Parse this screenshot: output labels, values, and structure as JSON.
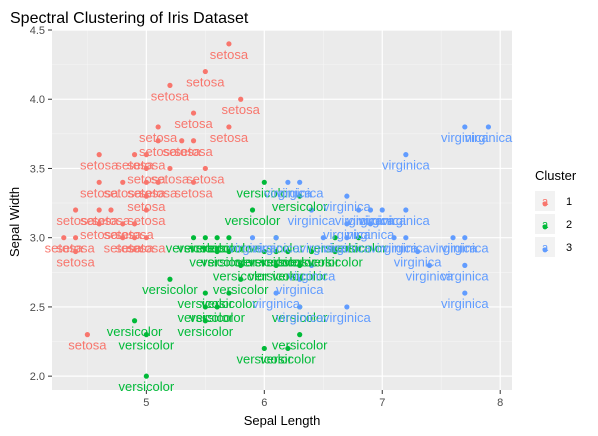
{
  "chart_data": {
    "type": "scatter",
    "title": "Spectral Clustering of Iris Dataset",
    "xlabel": "Sepal Length",
    "ylabel": "Sepal Width",
    "xlim": [
      4.2,
      8.1
    ],
    "ylim": [
      1.9,
      4.5
    ],
    "xticks": [
      5,
      6,
      7,
      8
    ],
    "yticks": [
      2.0,
      2.5,
      3.0,
      3.5,
      4.0,
      4.5
    ],
    "grid": true,
    "legend": {
      "title": "Cluster",
      "position": "right",
      "entries": [
        {
          "key": "1",
          "symbol": "a",
          "color": "#F8766D"
        },
        {
          "key": "2",
          "symbol": "a",
          "color": "#00BA38"
        },
        {
          "key": "3",
          "symbol": "a",
          "color": "#619CFF"
        }
      ]
    },
    "series": [
      {
        "name": "1",
        "color": "#F8766D",
        "label": "setosa",
        "points": [
          [
            5.7,
            4.4
          ],
          [
            5.5,
            4.2
          ],
          [
            5.2,
            4.1
          ],
          [
            5.8,
            4.0
          ],
          [
            5.4,
            3.9
          ],
          [
            5.1,
            3.8
          ],
          [
            5.7,
            3.8
          ],
          [
            5.4,
            3.7
          ],
          [
            5.3,
            3.7
          ],
          [
            5.1,
            3.7
          ],
          [
            5.0,
            3.6
          ],
          [
            4.9,
            3.6
          ],
          [
            4.6,
            3.6
          ],
          [
            5.5,
            3.5
          ],
          [
            5.2,
            3.5
          ],
          [
            5.0,
            3.5
          ],
          [
            5.1,
            3.4
          ],
          [
            4.8,
            3.4
          ],
          [
            5.4,
            3.4
          ],
          [
            5.0,
            3.4
          ],
          [
            4.6,
            3.4
          ],
          [
            5.0,
            3.3
          ],
          [
            4.7,
            3.2
          ],
          [
            4.4,
            3.2
          ],
          [
            5.0,
            3.2
          ],
          [
            4.6,
            3.2
          ],
          [
            4.8,
            3.1
          ],
          [
            4.9,
            3.1
          ],
          [
            4.6,
            3.1
          ],
          [
            4.8,
            3.0
          ],
          [
            4.3,
            3.0
          ],
          [
            4.4,
            3.0
          ],
          [
            4.9,
            3.0
          ],
          [
            5.0,
            3.0
          ],
          [
            4.4,
            2.9
          ],
          [
            4.5,
            2.3
          ]
        ]
      },
      {
        "name": "2",
        "color": "#00BA38",
        "label": "versicolor",
        "points": [
          [
            6.0,
            3.4
          ],
          [
            5.9,
            3.2
          ],
          [
            6.3,
            3.3
          ],
          [
            6.1,
            3.0
          ],
          [
            5.6,
            3.0
          ],
          [
            5.7,
            3.0
          ],
          [
            6.6,
            3.0
          ],
          [
            6.8,
            3.0
          ],
          [
            5.7,
            2.9
          ],
          [
            6.0,
            2.9
          ],
          [
            6.1,
            2.9
          ],
          [
            5.6,
            2.9
          ],
          [
            6.2,
            2.9
          ],
          [
            6.4,
            2.9
          ],
          [
            6.6,
            2.9
          ],
          [
            5.8,
            2.8
          ],
          [
            6.1,
            2.8
          ],
          [
            6.3,
            2.8
          ],
          [
            5.5,
            2.6
          ],
          [
            5.8,
            2.7
          ],
          [
            5.6,
            2.5
          ],
          [
            5.2,
            2.7
          ],
          [
            5.5,
            2.5
          ],
          [
            5.5,
            2.4
          ],
          [
            4.9,
            2.4
          ],
          [
            5.7,
            2.6
          ],
          [
            6.3,
            2.5
          ],
          [
            5.0,
            2.3
          ],
          [
            6.3,
            2.3
          ],
          [
            6.2,
            2.2
          ],
          [
            6.0,
            2.2
          ],
          [
            5.0,
            2.0
          ],
          [
            5.5,
            3.0
          ],
          [
            5.4,
            3.0
          ]
        ]
      },
      {
        "name": "3",
        "color": "#619CFF",
        "label": "virginica",
        "points": [
          [
            7.7,
            3.8
          ],
          [
            7.9,
            3.8
          ],
          [
            7.2,
            3.6
          ],
          [
            6.2,
            3.4
          ],
          [
            6.3,
            3.4
          ],
          [
            6.7,
            3.3
          ],
          [
            6.9,
            3.2
          ],
          [
            6.8,
            3.2
          ],
          [
            7.0,
            3.2
          ],
          [
            7.2,
            3.2
          ],
          [
            6.4,
            3.2
          ],
          [
            6.9,
            3.1
          ],
          [
            6.7,
            3.1
          ],
          [
            7.1,
            3.0
          ],
          [
            7.2,
            3.0
          ],
          [
            7.6,
            3.0
          ],
          [
            7.7,
            3.0
          ],
          [
            6.5,
            3.0
          ],
          [
            6.7,
            3.0
          ],
          [
            5.9,
            3.0
          ],
          [
            6.1,
            3.0
          ],
          [
            7.3,
            2.9
          ],
          [
            6.4,
            2.8
          ],
          [
            7.4,
            2.8
          ],
          [
            7.7,
            2.8
          ],
          [
            6.3,
            2.7
          ],
          [
            6.1,
            2.6
          ],
          [
            7.7,
            2.6
          ],
          [
            6.7,
            2.5
          ],
          [
            6.3,
            2.5
          ]
        ]
      }
    ]
  }
}
